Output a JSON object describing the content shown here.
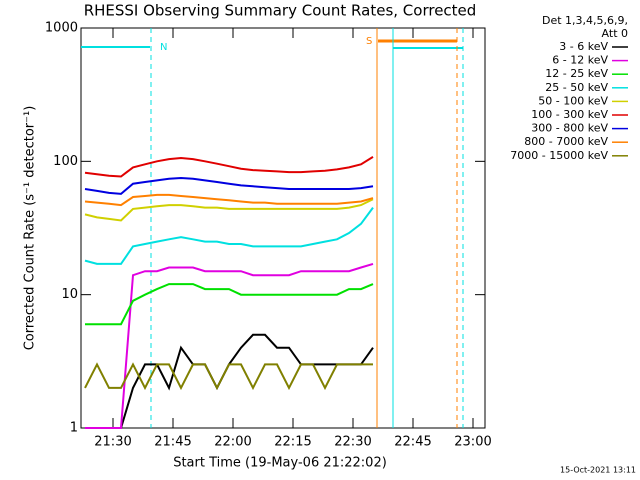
{
  "chart_data": {
    "type": "line",
    "title": "RHESSI Observing Summary Count Rates, Corrected",
    "xlabel": "Start Time (19-May-06 21:22:02)",
    "ylabel": "Corrected Count Rate (s⁻¹ detector⁻¹)",
    "legend_title": [
      "Det 1,3,4,5,6,9,",
      "Att 0"
    ],
    "footer": "15-Oct-2021 13:11",
    "annotations": [
      "N",
      "S"
    ],
    "yscale": "log",
    "ylim": [
      1,
      1000
    ],
    "yticks": [
      1,
      10,
      100,
      1000
    ],
    "xlim": [
      1282,
      1383
    ],
    "xticks": [
      {
        "value": 1290,
        "label": "21:30"
      },
      {
        "value": 1305,
        "label": "21:45"
      },
      {
        "value": 1320,
        "label": "22:00"
      },
      {
        "value": 1335,
        "label": "22:15"
      },
      {
        "value": 1350,
        "label": "22:30"
      },
      {
        "value": 1365,
        "label": "22:45"
      },
      {
        "value": 1380,
        "label": "23:00"
      }
    ],
    "x": [
      1283,
      1286,
      1289,
      1292,
      1295,
      1298,
      1301,
      1304,
      1307,
      1310,
      1313,
      1316,
      1319,
      1322,
      1325,
      1328,
      1331,
      1334,
      1337,
      1340,
      1343,
      1346,
      1349,
      1352,
      1355
    ],
    "series": [
      {
        "name": "3 - 6 keV",
        "color": "#000000",
        "values": [
          1,
          1,
          1,
          1,
          2,
          3,
          3,
          2,
          4,
          3,
          3,
          2,
          3,
          4,
          5,
          5,
          4,
          4,
          3,
          3,
          3,
          3,
          3,
          3,
          4
        ]
      },
      {
        "name": "6 - 12 keV",
        "color": "#e000e0",
        "values": [
          1,
          1,
          1,
          1,
          14,
          15,
          15,
          16,
          16,
          16,
          15,
          15,
          15,
          15,
          14,
          14,
          14,
          14,
          15,
          15,
          15,
          15,
          15,
          16,
          17
        ]
      },
      {
        "name": "12 - 25 keV",
        "color": "#00e000",
        "values": [
          6,
          6,
          6,
          6,
          9,
          10,
          11,
          12,
          12,
          12,
          11,
          11,
          11,
          10,
          10,
          10,
          10,
          10,
          10,
          10,
          10,
          10,
          11,
          11,
          12
        ]
      },
      {
        "name": "25 - 50 keV",
        "color": "#00e0e0",
        "values": [
          18,
          17,
          17,
          17,
          23,
          24,
          25,
          26,
          27,
          26,
          25,
          25,
          24,
          24,
          23,
          23,
          23,
          23,
          23,
          24,
          25,
          26,
          29,
          34,
          45
        ]
      },
      {
        "name": "50 - 100 keV",
        "color": "#d0d000",
        "values": [
          40,
          38,
          37,
          36,
          44,
          45,
          46,
          47,
          47,
          46,
          45,
          45,
          44,
          44,
          44,
          44,
          44,
          44,
          44,
          44,
          44,
          44,
          45,
          47,
          52
        ]
      },
      {
        "name": "100 - 300 keV",
        "color": "#e00000",
        "values": [
          82,
          80,
          78,
          77,
          90,
          95,
          100,
          104,
          106,
          104,
          100,
          96,
          92,
          88,
          86,
          85,
          84,
          83,
          83,
          84,
          85,
          87,
          90,
          95,
          108
        ]
      },
      {
        "name": "300 - 800 keV",
        "color": "#0000e0",
        "values": [
          62,
          60,
          58,
          57,
          68,
          70,
          72,
          74,
          75,
          74,
          72,
          70,
          68,
          66,
          65,
          64,
          63,
          62,
          62,
          62,
          62,
          62,
          62,
          63,
          65
        ]
      },
      {
        "name": "800 - 7000 keV",
        "color": "#ff8000",
        "values": [
          50,
          49,
          48,
          47,
          54,
          55,
          56,
          56,
          55,
          54,
          53,
          52,
          51,
          50,
          49,
          49,
          48,
          48,
          48,
          48,
          48,
          48,
          49,
          50,
          53
        ]
      },
      {
        "name": "7000 - 15000 keV",
        "color": "#808000",
        "values": [
          2,
          3,
          2,
          2,
          3,
          2,
          3,
          3,
          2,
          3,
          3,
          2,
          3,
          3,
          2,
          3,
          3,
          2,
          3,
          3,
          2,
          3,
          3,
          3,
          3
        ]
      }
    ]
  }
}
